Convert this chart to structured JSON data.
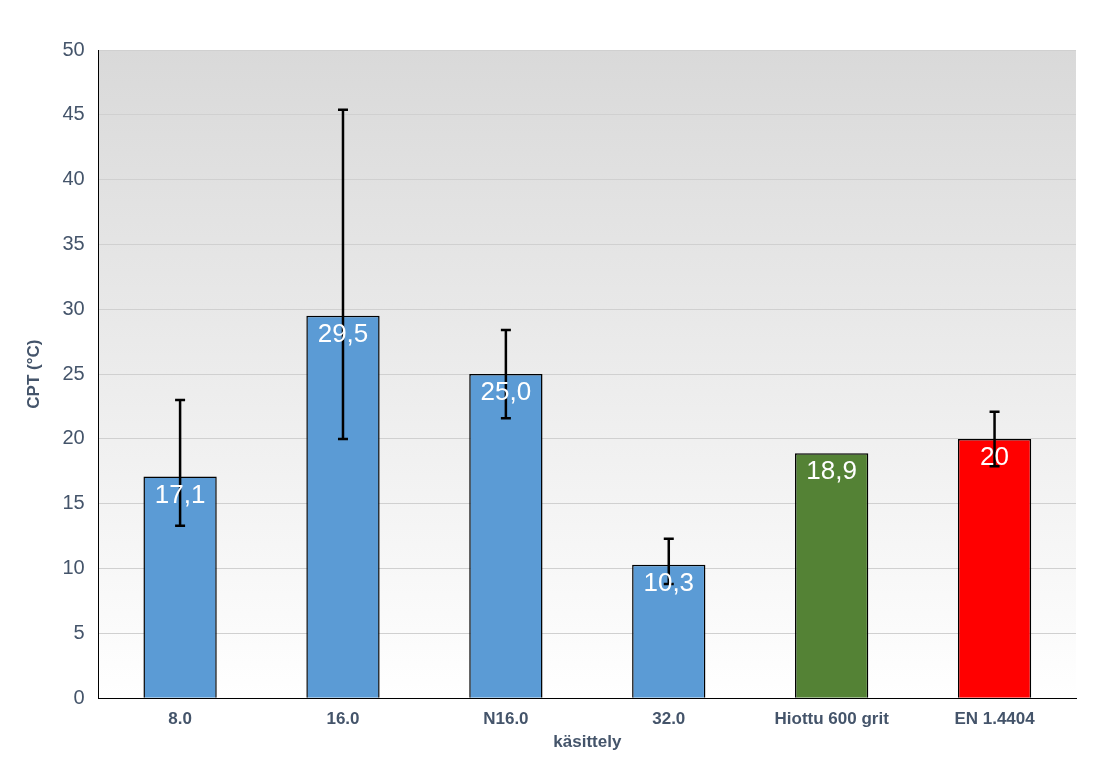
{
  "chart_data": {
    "type": "bar",
    "ylabel": "CPT (°C)",
    "xlabel": "käsittely",
    "categories": [
      "8.0",
      "16.0",
      "N16.0",
      "32.0",
      "Hiottu 600 grit",
      "EN 1.4404"
    ],
    "values": [
      17.1,
      29.5,
      25.0,
      10.3,
      18.9,
      20
    ],
    "colors": [
      "#5b9bd5",
      "#5b9bd5",
      "#5b9bd5",
      "#5b9bd5",
      "#548235",
      "#ff0000"
    ],
    "errors": [
      [
        13.3,
        23.0
      ],
      [
        20.0,
        45.4
      ],
      [
        21.6,
        28.4
      ],
      [
        8.8,
        12.3
      ],
      null,
      [
        17.9,
        22.1
      ]
    ],
    "value_labels": [
      "17,1",
      "29,5",
      "25,0",
      "10,3",
      "18,9",
      "20"
    ],
    "ylim": [
      0,
      50
    ],
    "yticks": [
      0,
      5,
      10,
      15,
      20,
      25,
      30,
      35,
      40,
      45,
      50
    ],
    "grid": "y"
  }
}
